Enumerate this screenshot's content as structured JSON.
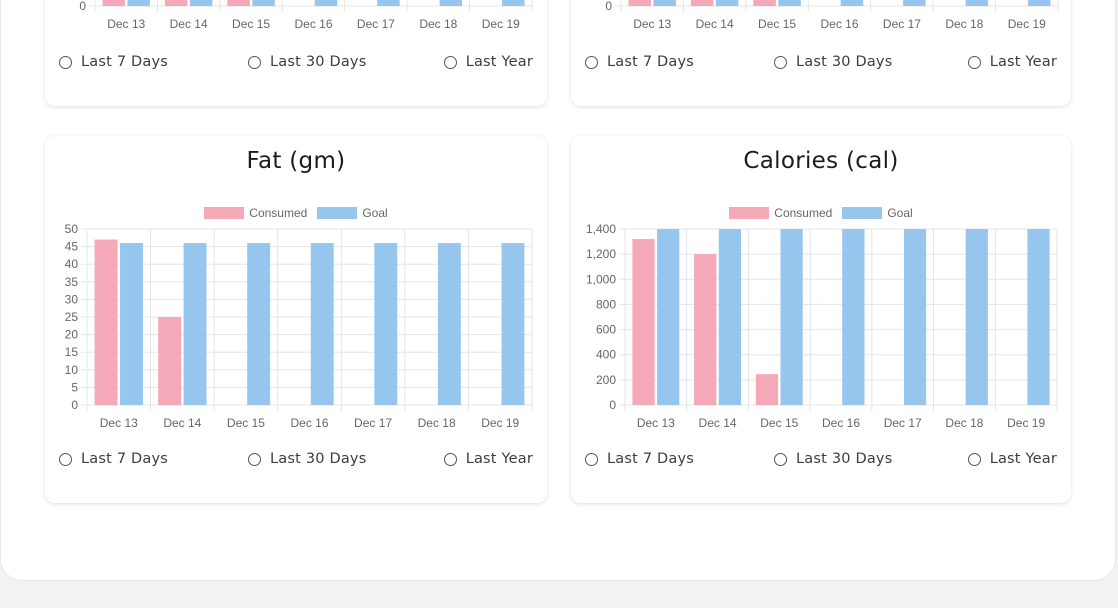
{
  "colors": {
    "consumed": "#f4a8b8",
    "goal": "#96c6ee",
    "grid": "#e5e5e5",
    "axis_text": "#666666"
  },
  "range_options": [
    "Last 7 Days",
    "Last 30 Days",
    "Last Year"
  ],
  "legend": {
    "consumed": "Consumed",
    "goal": "Goal"
  },
  "chart_data": [
    {
      "type": "bar",
      "title": "",
      "categories": [
        "Dec 13",
        "Dec 14",
        "Dec 15",
        "Dec 16",
        "Dec 17",
        "Dec 18",
        "Dec 19"
      ],
      "visible_ticks": [
        0
      ]
    },
    {
      "type": "bar",
      "title": "",
      "categories": [
        "Dec 13",
        "Dec 14",
        "Dec 15",
        "Dec 16",
        "Dec 17",
        "Dec 18",
        "Dec 19"
      ],
      "visible_ticks": [
        0
      ]
    },
    {
      "type": "bar",
      "title": "Fat (gm)",
      "categories": [
        "Dec 13",
        "Dec 14",
        "Dec 15",
        "Dec 16",
        "Dec 17",
        "Dec 18",
        "Dec 19"
      ],
      "series": [
        {
          "name": "Consumed",
          "values": [
            47,
            25,
            0,
            0,
            0,
            0,
            0
          ]
        },
        {
          "name": "Goal",
          "values": [
            46,
            46,
            46,
            46,
            46,
            46,
            46
          ]
        }
      ],
      "ylim": [
        0,
        50
      ],
      "yticks": [
        0,
        5,
        10,
        15,
        20,
        25,
        30,
        35,
        40,
        45,
        50
      ],
      "ytick_labels": [
        "0",
        "5",
        "10",
        "15",
        "20",
        "25",
        "30",
        "35",
        "40",
        "45",
        "50"
      ],
      "grid": true,
      "legend_position": "top"
    },
    {
      "type": "bar",
      "title": "Calories (cal)",
      "categories": [
        "Dec 13",
        "Dec 14",
        "Dec 15",
        "Dec 16",
        "Dec 17",
        "Dec 18",
        "Dec 19"
      ],
      "series": [
        {
          "name": "Consumed",
          "values": [
            1320,
            1200,
            245,
            0,
            0,
            0,
            0
          ]
        },
        {
          "name": "Goal",
          "values": [
            1400,
            1400,
            1400,
            1400,
            1400,
            1400,
            1400
          ]
        }
      ],
      "ylim": [
        0,
        1400
      ],
      "yticks": [
        0,
        200,
        400,
        600,
        800,
        1000,
        1200,
        1400
      ],
      "ytick_labels": [
        "0",
        "200",
        "400",
        "600",
        "800",
        "1,000",
        "1,200",
        "1,400"
      ],
      "grid": true,
      "legend_position": "top"
    }
  ]
}
